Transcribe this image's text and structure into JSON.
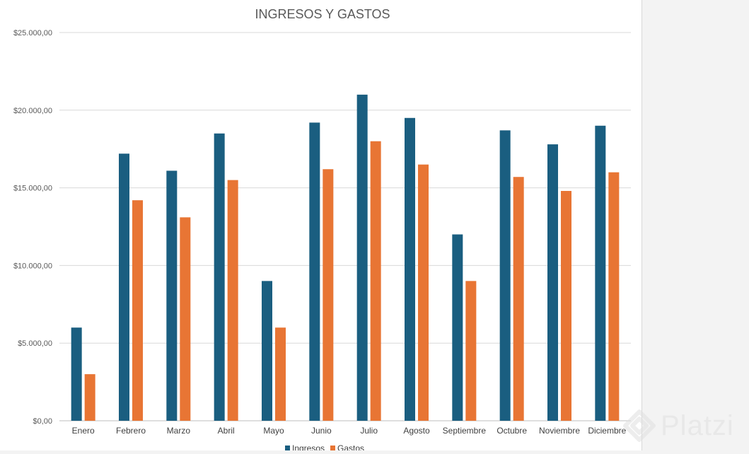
{
  "chart_data": {
    "type": "bar",
    "title": "INGRESOS Y GASTOS",
    "categories": [
      "Enero",
      "Febrero",
      "Marzo",
      "Abril",
      "Mayo",
      "Junio",
      "Julio",
      "Agosto",
      "Septiembre",
      "Octubre",
      "Noviembre",
      "Diciembre"
    ],
    "series": [
      {
        "name": "Ingresos",
        "color": "#1a5e80",
        "values": [
          6000,
          17200,
          16100,
          18500,
          9000,
          19200,
          21000,
          19500,
          12000,
          18700,
          17800,
          19000
        ]
      },
      {
        "name": "Gastos",
        "color": "#e87534",
        "values": [
          3000,
          14200,
          13100,
          15500,
          6000,
          16200,
          18000,
          16500,
          9000,
          15700,
          14800,
          16000
        ]
      }
    ],
    "ylim": [
      0,
      25000
    ],
    "yticks": [
      0,
      5000,
      10000,
      15000,
      20000,
      25000
    ],
    "ytick_labels": [
      "$0,00",
      "$5.000,00",
      "$10.000,00",
      "$15.000,00",
      "$20.000,00",
      "$25.000,00"
    ],
    "xlabel": "",
    "ylabel": "",
    "grid": true,
    "legend_position": "bottom"
  },
  "watermark": {
    "text": "Platzi",
    "icon": "platzi-logo-icon"
  }
}
